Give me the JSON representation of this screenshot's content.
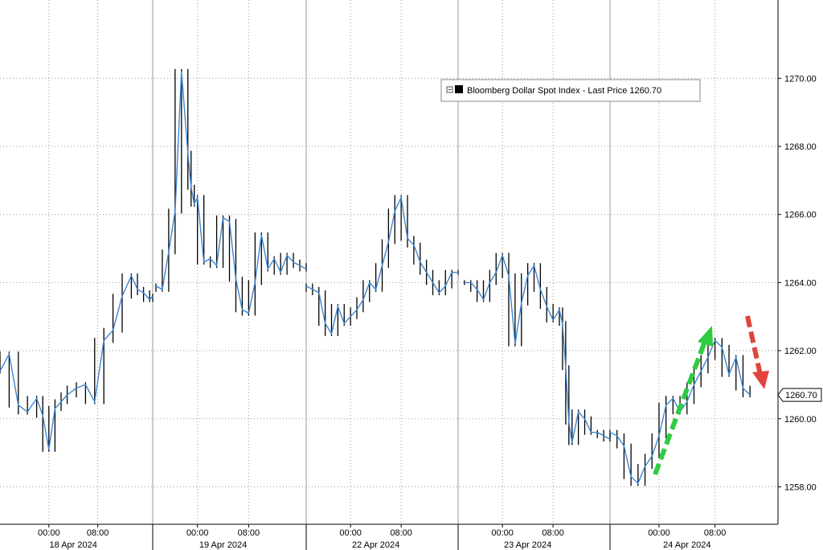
{
  "chart_data": {
    "type": "line",
    "title": "",
    "xlabel": "",
    "ylabel": "",
    "ylim": [
      1256.9,
      1272.3
    ],
    "y_ticks": [
      "1258.00",
      "1260.00",
      "1262.00",
      "1264.00",
      "1266.00",
      "1268.00",
      "1270.00"
    ],
    "y_tick_values": [
      1258,
      1260,
      1262,
      1264,
      1266,
      1268,
      1270
    ],
    "grid": true,
    "legend_position": "top-center",
    "x_time_labels": [
      "00:00",
      "08:00",
      "00:00",
      "08:00",
      "00:00",
      "08:00",
      "00:00",
      "08:00",
      "00:00",
      "08:00"
    ],
    "x_day_labels": [
      "18 Apr 2024",
      "19 Apr 2024",
      "22 Apr 2024",
      "23 Apr 2024",
      "24 Apr 2024"
    ],
    "last_price_label": "1260.70",
    "last_price": 1260.7,
    "series": [
      {
        "name": "Bloomberg Dollar Spot Index - Last Price 1260.70",
        "line_color": "#3a86d4",
        "bar_color": "#000000",
        "segments": [
          {
            "x": [
              "2024-04-17 16:00",
              "2024-04-17 17:30",
              "2024-04-17 19:00",
              "2024-04-17 20:30",
              "2024-04-17 22:00",
              "2024-04-17 23:00",
              "2024-04-18 00:00",
              "2024-04-18 01:00",
              "2024-04-18 02:00",
              "2024-04-18 03:00",
              "2024-04-18 04:30",
              "2024-04-18 06:00",
              "2024-04-18 07:30",
              "2024-04-18 09:00",
              "2024-04-18 10:30",
              "2024-04-18 12:00",
              "2024-04-18 13:30",
              "2024-04-18 14:30",
              "2024-04-18 15:30",
              "2024-04-18 16:30",
              "2024-04-18 17:00"
            ],
            "y": [
              1261.4,
              1261.9,
              1260.4,
              1260.2,
              1260.6,
              1260.1,
              1259.1,
              1260.3,
              1260.5,
              1260.7,
              1260.9,
              1261.0,
              1260.5,
              1262.3,
              1262.6,
              1263.6,
              1264.2,
              1263.8,
              1263.7,
              1263.5,
              1263.6
            ]
          },
          {
            "x": [
              "2024-04-18 17:30",
              "2024-04-18 18:30",
              "2024-04-18 19:30",
              "2024-04-18 20:30",
              "2024-04-18 21:30",
              "2024-04-18 22:30",
              "2024-04-18 23:00",
              "2024-04-18 23:30",
              "2024-04-19 00:00",
              "2024-04-19 01:00",
              "2024-04-19 02:00",
              "2024-04-19 03:00",
              "2024-04-19 04:00",
              "2024-04-19 05:00",
              "2024-04-19 06:00",
              "2024-04-19 07:00",
              "2024-04-19 08:00",
              "2024-04-19 09:00",
              "2024-04-19 10:00",
              "2024-04-19 11:00",
              "2024-04-19 12:00",
              "2024-04-19 13:00",
              "2024-04-19 14:00",
              "2024-04-19 15:00",
              "2024-04-19 16:00",
              "2024-04-19 17:00"
            ],
            "y": [
              1263.9,
              1263.8,
              1264.9,
              1266.1,
              1270.2,
              1267.8,
              1266.8,
              1266.3,
              1266.5,
              1264.6,
              1264.7,
              1264.5,
              1265.9,
              1265.8,
              1264.1,
              1263.2,
              1263.1,
              1264.0,
              1265.4,
              1264.4,
              1264.7,
              1264.3,
              1264.8,
              1264.6,
              1264.5,
              1264.4
            ]
          },
          {
            "x": [
              "2024-04-21 17:00",
              "2024-04-21 18:00",
              "2024-04-21 19:00",
              "2024-04-21 20:00",
              "2024-04-21 21:00",
              "2024-04-21 22:00",
              "2024-04-21 23:00",
              "2024-04-22 00:00",
              "2024-04-22 01:00",
              "2024-04-22 02:00",
              "2024-04-22 03:00",
              "2024-04-22 04:00",
              "2024-04-22 05:00",
              "2024-04-22 06:00",
              "2024-04-22 07:00",
              "2024-04-22 08:00",
              "2024-04-22 09:00",
              "2024-04-22 10:00",
              "2024-04-22 11:00",
              "2024-04-22 12:00",
              "2024-04-22 13:00",
              "2024-04-22 14:00",
              "2024-04-22 15:00",
              "2024-04-22 16:00",
              "2024-04-22 17:00"
            ],
            "y": [
              1263.9,
              1263.8,
              1263.7,
              1262.8,
              1262.5,
              1263.3,
              1262.8,
              1263.0,
              1263.2,
              1263.5,
              1264.0,
              1263.8,
              1264.5,
              1265.2,
              1266.1,
              1266.5,
              1265.3,
              1265.1,
              1264.6,
              1264.3,
              1264.0,
              1263.7,
              1263.9,
              1264.3,
              1264.3
            ]
          },
          {
            "x": [
              "2024-04-22 18:00",
              "2024-04-22 19:00",
              "2024-04-22 20:00",
              "2024-04-22 21:00",
              "2024-04-22 22:00",
              "2024-04-22 23:00",
              "2024-04-23 00:00",
              "2024-04-23 01:00",
              "2024-04-23 02:00",
              "2024-04-23 03:00",
              "2024-04-23 04:00",
              "2024-04-23 05:00",
              "2024-04-23 06:00",
              "2024-04-23 07:00",
              "2024-04-23 08:00",
              "2024-04-23 09:00",
              "2024-04-23 09:30",
              "2024-04-23 10:00",
              "2024-04-23 10:30",
              "2024-04-23 11:00",
              "2024-04-23 12:00",
              "2024-04-23 13:00",
              "2024-04-23 14:00",
              "2024-04-23 15:00",
              "2024-04-23 16:00",
              "2024-04-23 17:00"
            ],
            "y": [
              1264.0,
              1264.0,
              1263.8,
              1263.5,
              1264.0,
              1264.3,
              1264.8,
              1264.2,
              1262.2,
              1263.4,
              1264.2,
              1264.5,
              1263.8,
              1263.3,
              1262.9,
              1263.2,
              1262.8,
              1261.5,
              1259.9,
              1259.3,
              1260.2,
              1260.0,
              1259.6,
              1259.6,
              1259.5,
              1259.4
            ]
          },
          {
            "x": [
              "2024-04-23 17:00",
              "2024-04-23 18:00",
              "2024-04-23 19:00",
              "2024-04-23 20:00",
              "2024-04-23 21:00",
              "2024-04-23 22:00",
              "2024-04-23 23:00",
              "2024-04-24 00:00",
              "2024-04-24 01:00",
              "2024-04-24 02:00",
              "2024-04-24 03:00",
              "2024-04-24 04:00",
              "2024-04-24 05:00",
              "2024-04-24 06:00",
              "2024-04-24 07:00",
              "2024-04-24 08:00",
              "2024-04-24 09:00",
              "2024-04-24 10:00",
              "2024-04-24 11:00",
              "2024-04-24 12:00",
              "2024-04-24 13:00"
            ],
            "y": [
              1259.6,
              1259.5,
              1259.2,
              1258.3,
              1258.1,
              1258.6,
              1258.9,
              1259.5,
              1260.4,
              1260.6,
              1260.2,
              1260.5,
              1261.0,
              1261.4,
              1261.8,
              1262.3,
              1262.1,
              1261.3,
              1261.8,
              1260.9,
              1260.7
            ]
          }
        ]
      }
    ]
  },
  "annotations": {
    "up_arrow_color": "#2ecc40",
    "down_arrow_color": "#e0443c"
  }
}
